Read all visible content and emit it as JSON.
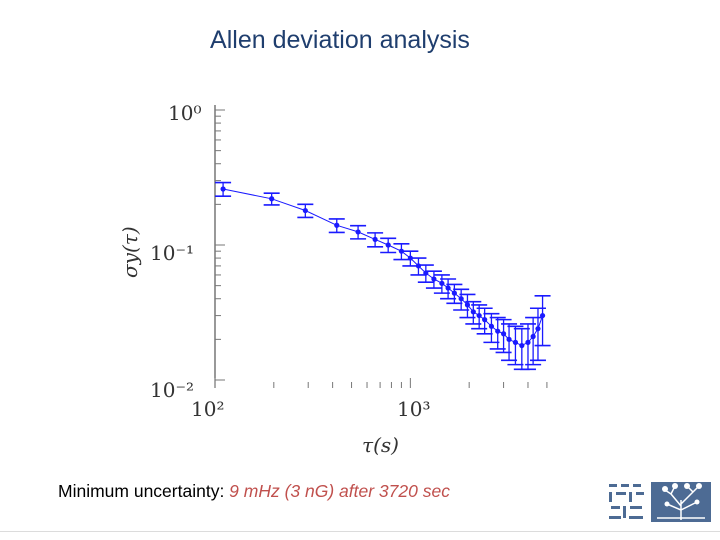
{
  "slide": {
    "title": "Allen deviation analysis",
    "caption_prefix": "Minimum uncertainty: ",
    "caption_highlight": "9 mHz (3 nG) after 3720 sec",
    "accent_color": "#c0504d",
    "title_color": "#1f3e6e"
  },
  "logo": {
    "name": "weizmann-institute-logo"
  },
  "chart_data": {
    "type": "scatter",
    "title": "",
    "xlabel": "τ(s)",
    "ylabel": "σy(τ)",
    "xscale": "log",
    "yscale": "log",
    "xlim": [
      100,
      5500
    ],
    "ylim": [
      0.01,
      1
    ],
    "x_tick_labels": [
      "10²",
      "10³"
    ],
    "y_tick_labels": [
      "10⁰",
      "10⁻¹",
      "10⁻²"
    ],
    "grid": false,
    "legend": "none",
    "series_color": "#1a1aff",
    "series": [
      {
        "name": "",
        "points": [
          {
            "x": 110,
            "y": 0.26,
            "err": 0.03
          },
          {
            "x": 195,
            "y": 0.22,
            "err": 0.022
          },
          {
            "x": 290,
            "y": 0.18,
            "err": 0.02
          },
          {
            "x": 420,
            "y": 0.14,
            "err": 0.016
          },
          {
            "x": 540,
            "y": 0.125,
            "err": 0.014
          },
          {
            "x": 660,
            "y": 0.11,
            "err": 0.013
          },
          {
            "x": 770,
            "y": 0.1,
            "err": 0.012
          },
          {
            "x": 900,
            "y": 0.09,
            "err": 0.012
          },
          {
            "x": 1000,
            "y": 0.08,
            "err": 0.01
          },
          {
            "x": 1100,
            "y": 0.07,
            "err": 0.01
          },
          {
            "x": 1200,
            "y": 0.062,
            "err": 0.009
          },
          {
            "x": 1320,
            "y": 0.056,
            "err": 0.008
          },
          {
            "x": 1450,
            "y": 0.052,
            "err": 0.008
          },
          {
            "x": 1560,
            "y": 0.048,
            "err": 0.008
          },
          {
            "x": 1680,
            "y": 0.044,
            "err": 0.007
          },
          {
            "x": 1820,
            "y": 0.04,
            "err": 0.007
          },
          {
            "x": 1960,
            "y": 0.036,
            "err": 0.007
          },
          {
            "x": 2100,
            "y": 0.032,
            "err": 0.006
          },
          {
            "x": 2250,
            "y": 0.03,
            "err": 0.006
          },
          {
            "x": 2400,
            "y": 0.028,
            "err": 0.006
          },
          {
            "x": 2600,
            "y": 0.025,
            "err": 0.006
          },
          {
            "x": 2800,
            "y": 0.023,
            "err": 0.006
          },
          {
            "x": 3000,
            "y": 0.022,
            "err": 0.006
          },
          {
            "x": 3200,
            "y": 0.02,
            "err": 0.006
          },
          {
            "x": 3450,
            "y": 0.019,
            "err": 0.006
          },
          {
            "x": 3720,
            "y": 0.018,
            "err": 0.006
          },
          {
            "x": 4000,
            "y": 0.019,
            "err": 0.007
          },
          {
            "x": 4250,
            "y": 0.021,
            "err": 0.008
          },
          {
            "x": 4500,
            "y": 0.024,
            "err": 0.01
          },
          {
            "x": 4750,
            "y": 0.03,
            "err": 0.012
          }
        ]
      }
    ]
  }
}
